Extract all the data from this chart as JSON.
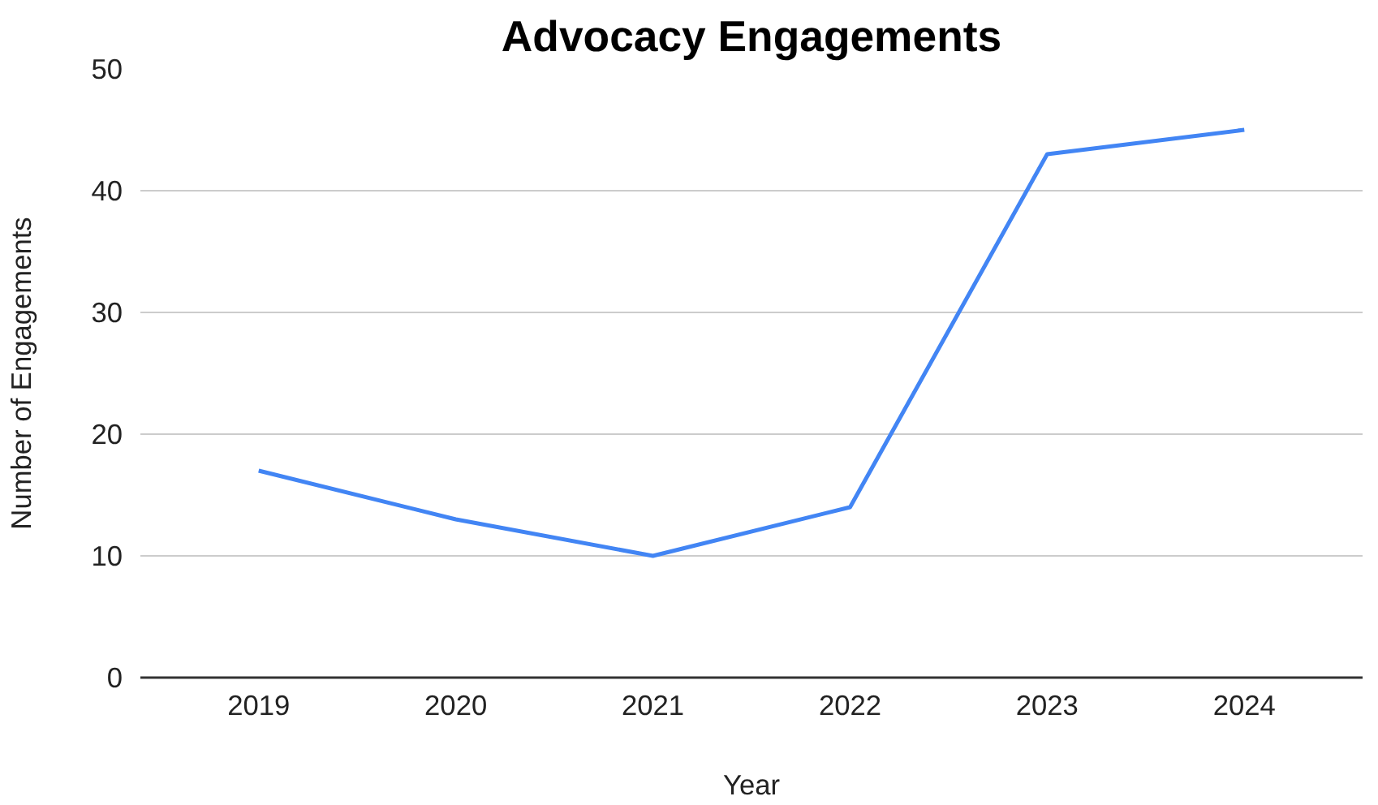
{
  "chart_data": {
    "type": "line",
    "title": "Advocacy Engagements",
    "xlabel": "Year",
    "ylabel": "Number of Engagements",
    "categories": [
      "2019",
      "2020",
      "2021",
      "2022",
      "2023",
      "2024"
    ],
    "series": [
      {
        "color": "#4285f4",
        "values": [
          17,
          13,
          10,
          14,
          43,
          45
        ]
      }
    ],
    "ylim": [
      0,
      50
    ],
    "yticks": [
      0,
      10,
      20,
      30,
      40,
      50
    ],
    "grid": "y",
    "marker": "none",
    "line_style": "solid"
  }
}
